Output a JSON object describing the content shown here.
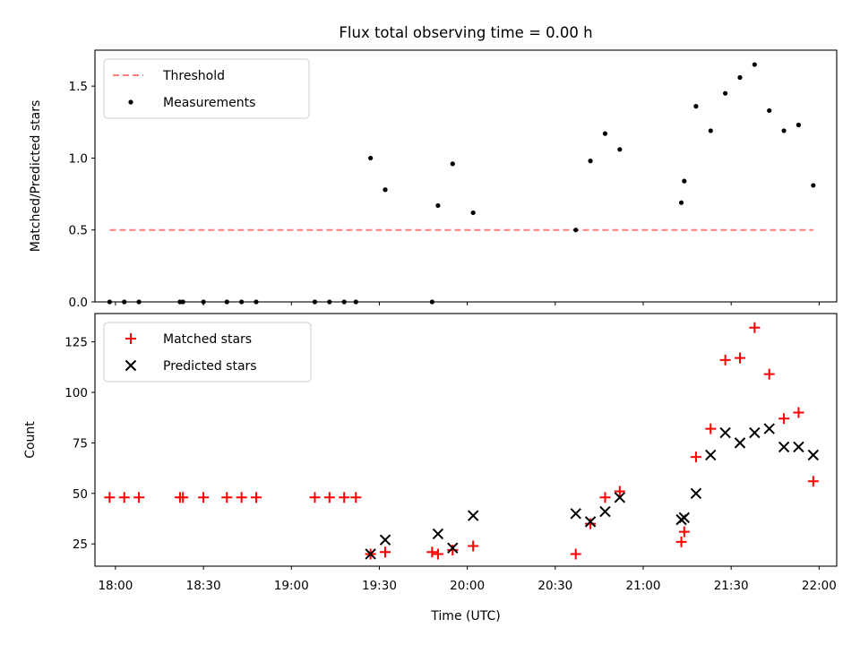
{
  "figure": {
    "title": "Flux total observing time = 0.00 h",
    "xlabel": "Time (UTC)"
  },
  "chart_data": [
    {
      "type": "scatter",
      "panel": "top",
      "title": "Flux total observing time = 0.00 h",
      "ylabel": "Matched/Predicted stars",
      "xlim": [
        "17:53",
        "22:06"
      ],
      "ylim": [
        0,
        1.75
      ],
      "yticks": [
        0.0,
        0.5,
        1.0,
        1.5
      ],
      "ytick_labels": [
        "0.0",
        "0.5",
        "1.0",
        "1.5"
      ],
      "grid": false,
      "legend_placement": "upper left",
      "series": [
        {
          "name": "Threshold",
          "style": "dashed-line",
          "color": "#ff7f7f",
          "x": [
            "17:58",
            "21:58"
          ],
          "y": [
            0.5,
            0.5
          ]
        },
        {
          "name": "Measurements",
          "style": "dot",
          "color": "#000000",
          "x": [
            "17:58",
            "18:03",
            "18:08",
            "18:22",
            "18:23",
            "18:30",
            "18:38",
            "18:43",
            "18:48",
            "19:08",
            "19:13",
            "19:18",
            "19:22",
            "19:27",
            "19:32",
            "19:48",
            "19:50",
            "19:55",
            "20:02",
            "20:37",
            "20:42",
            "20:47",
            "20:52",
            "21:13",
            "21:14",
            "21:18",
            "21:23",
            "21:28",
            "21:33",
            "21:38",
            "21:43",
            "21:48",
            "21:53",
            "21:58"
          ],
          "y": [
            0,
            0,
            0,
            0,
            0,
            0,
            0,
            0,
            0,
            0,
            0,
            0,
            0,
            1.0,
            0.78,
            0,
            0.67,
            0.96,
            0.62,
            0.5,
            0.98,
            1.17,
            1.06,
            0.69,
            0.84,
            1.36,
            1.19,
            1.45,
            1.56,
            1.65,
            1.33,
            1.19,
            1.23,
            0.81
          ]
        }
      ]
    },
    {
      "type": "scatter",
      "panel": "bottom",
      "ylabel": "Count",
      "xlabel": "Time (UTC)",
      "xlim": [
        "17:53",
        "22:06"
      ],
      "ylim": [
        14,
        139
      ],
      "yticks": [
        25,
        50,
        75,
        100,
        125
      ],
      "ytick_labels": [
        "25",
        "50",
        "75",
        "100",
        "125"
      ],
      "xticks": [
        "18:00",
        "18:30",
        "19:00",
        "19:30",
        "20:00",
        "20:30",
        "21:00",
        "21:30",
        "22:00"
      ],
      "xtick_labels": [
        "18:00",
        "18:30",
        "19:00",
        "19:30",
        "20:00",
        "20:30",
        "21:00",
        "21:30",
        "22:00"
      ],
      "grid": false,
      "legend_placement": "upper left",
      "series": [
        {
          "name": "Matched stars",
          "marker": "plus",
          "color": "#ff0000",
          "x": [
            "17:58",
            "18:03",
            "18:08",
            "18:22",
            "18:23",
            "18:30",
            "18:38",
            "18:43",
            "18:48",
            "19:08",
            "19:13",
            "19:18",
            "19:22",
            "19:27",
            "19:32",
            "19:48",
            "19:50",
            "19:55",
            "20:02",
            "20:37",
            "20:42",
            "20:47",
            "20:52",
            "21:13",
            "21:14",
            "21:18",
            "21:23",
            "21:28",
            "21:33",
            "21:38",
            "21:43",
            "21:48",
            "21:53",
            "21:58"
          ],
          "y": [
            48,
            48,
            48,
            48,
            48,
            48,
            48,
            48,
            48,
            48,
            48,
            48,
            48,
            20,
            21,
            21,
            20,
            22,
            24,
            20,
            35,
            48,
            51,
            26,
            31,
            68,
            82,
            116,
            117,
            132,
            109,
            87,
            90,
            56
          ]
        },
        {
          "name": "Predicted stars",
          "marker": "x",
          "color": "#000000",
          "x": [
            "19:27",
            "19:32",
            "19:50",
            "19:55",
            "20:02",
            "20:37",
            "20:42",
            "20:47",
            "20:52",
            "21:13",
            "21:14",
            "21:18",
            "21:23",
            "21:28",
            "21:33",
            "21:38",
            "21:43",
            "21:48",
            "21:53",
            "21:58"
          ],
          "y": [
            20,
            27,
            30,
            23,
            39,
            40,
            36,
            41,
            48,
            37,
            38,
            50,
            69,
            80,
            75,
            80,
            82,
            73,
            73,
            69
          ]
        }
      ]
    }
  ]
}
